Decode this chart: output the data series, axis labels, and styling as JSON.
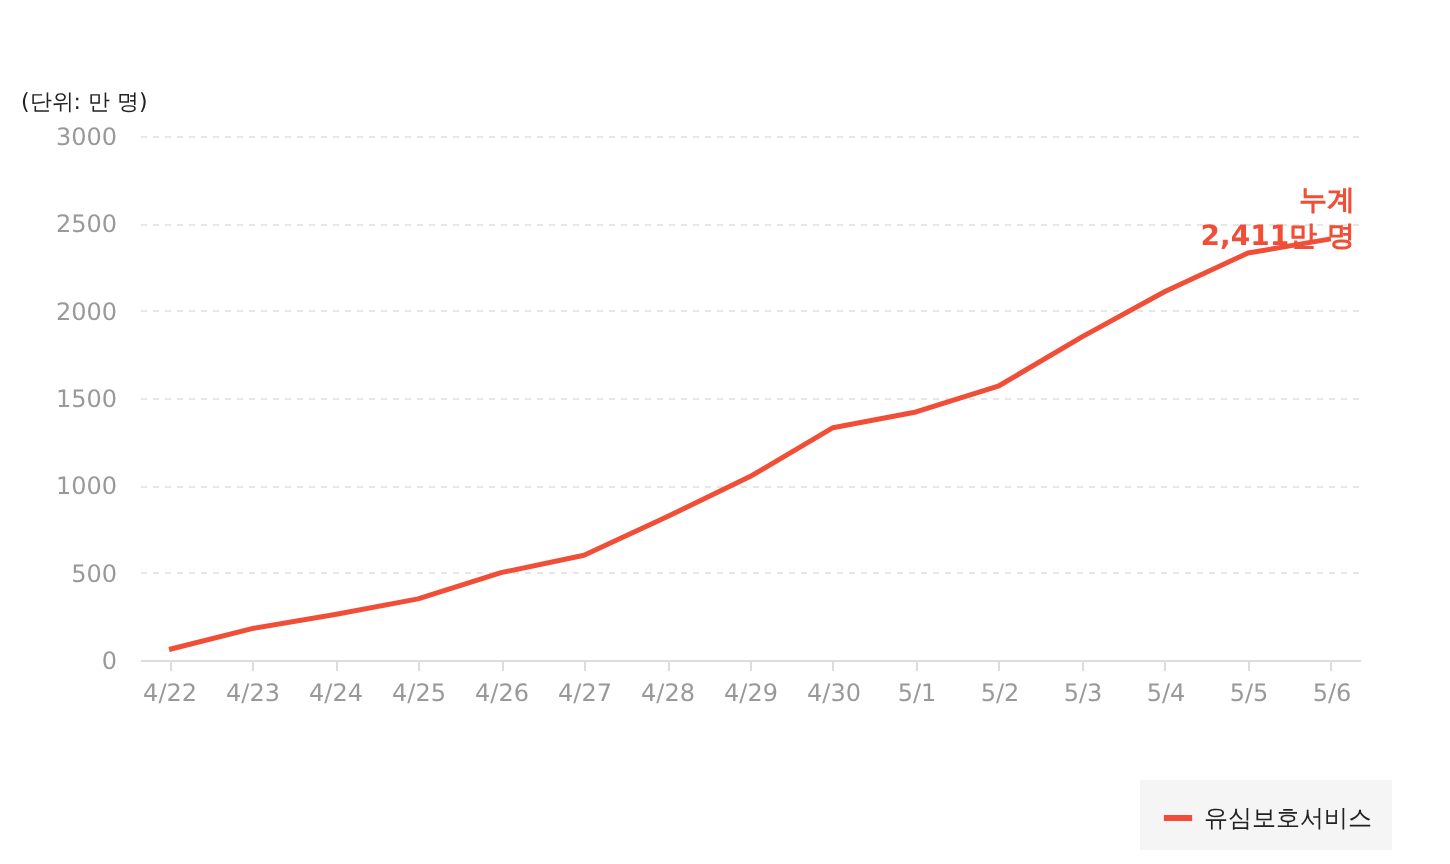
{
  "chart_data": {
    "type": "line",
    "ylabel": "(단위: 만 명)",
    "categories": [
      "4/22",
      "4/23",
      "4/24",
      "4/25",
      "4/26",
      "4/27",
      "4/28",
      "4/29",
      "4/30",
      "5/1",
      "5/2",
      "5/3",
      "5/4",
      "5/5",
      "5/6"
    ],
    "series": [
      {
        "name": "유심보호서비스",
        "color": "#f04e37",
        "values": [
          60,
          180,
          260,
          350,
          500,
          600,
          820,
          1050,
          1330,
          1420,
          1570,
          1850,
          2110,
          2330,
          2411
        ]
      }
    ],
    "ylim": [
      0,
      3000
    ],
    "yticks": [
      0,
      500,
      1000,
      1500,
      2000,
      2500,
      3000
    ],
    "grid": "y",
    "legend": "bottom right",
    "marker": "none",
    "line_style": "solid",
    "annotations": [
      {
        "text": "누계\n2,411만 명",
        "x": "5/6",
        "y": 2411
      }
    ]
  }
}
